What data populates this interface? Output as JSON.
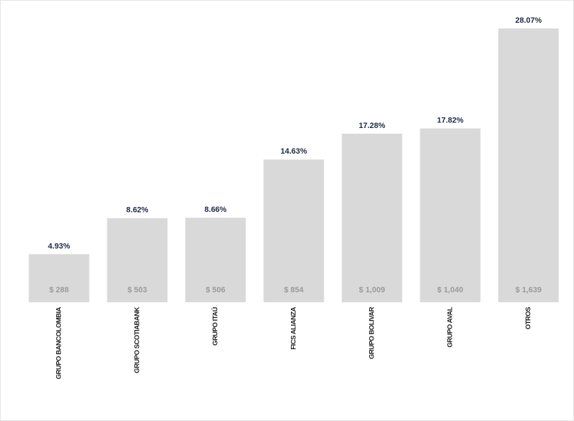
{
  "chart_data": {
    "type": "bar",
    "categories": [
      "GRUPO BANCOLOMBIA",
      "GRUPO SCOTIABANK",
      "GRUPO ITAÚ",
      "FICS ALIANZA",
      "GRUPO BOLIVAR",
      "GRUPO AVAL",
      "OTROS"
    ],
    "values": [
      4.93,
      8.62,
      8.66,
      14.63,
      17.28,
      17.82,
      28.07
    ],
    "value_labels": [
      "4.93%",
      "8.62%",
      "8.66%",
      "14.63%",
      "17.28%",
      "17.82%",
      "28.07%"
    ],
    "amounts": [
      288,
      503,
      506,
      854,
      1009,
      1040,
      1639
    ],
    "amount_labels": [
      "$ 288",
      "$ 503",
      "$ 506",
      "$ 854",
      "$ 1,009",
      "$ 1,040",
      "$ 1,639"
    ],
    "color": "#d9d9d9"
  }
}
